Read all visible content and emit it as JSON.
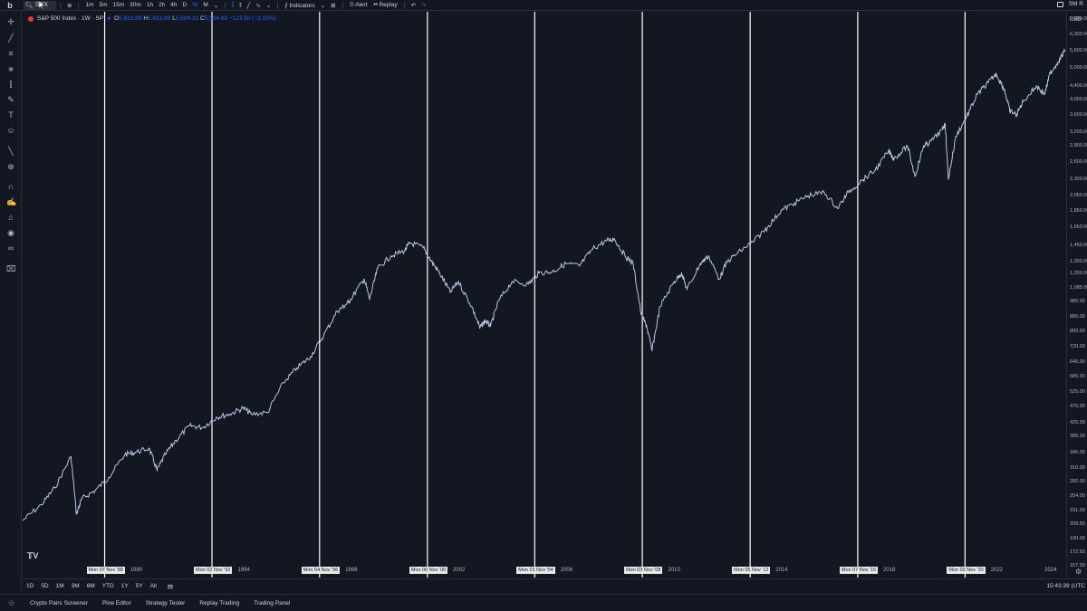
{
  "topbar": {
    "logo": "b",
    "search_value": "SPX",
    "timeframes": [
      "1m",
      "5m",
      "15m",
      "30m",
      "1h",
      "2h",
      "4h",
      "D",
      "W",
      "M"
    ],
    "active_timeframe": "W",
    "indicators_label": "Indicators",
    "alert_label": "Alert",
    "replay_label": "Replay",
    "right_label": "SM R"
  },
  "legend": {
    "symbol": "S&P 500 Index · 1W · SP",
    "open": "5,623.89",
    "high": "5,623.89",
    "low": "5,504.33",
    "close": "5,504.89",
    "change": "−123.50 (−2.19%)"
  },
  "yaxis": {
    "currency": "USD",
    "ticks": [
      "7,000.00",
      "6,300.00",
      "5,600.00",
      "5,000.00",
      "4,400.00",
      "4,000.00",
      "3,600.00",
      "3,200.00",
      "2,900.00",
      "2,600.00",
      "2,300.00",
      "2,050.00",
      "1,850.00",
      "1,650.00",
      "1,450.00",
      "1,300.00",
      "1,200.00",
      "1,085.00",
      "985.00",
      "885.00",
      "800.00",
      "720.00",
      "645.00",
      "585.00",
      "525.00",
      "475.00",
      "425.00",
      "385.00",
      "345.00",
      "310.00",
      "282.00",
      "254.00",
      "231.00",
      "209.50",
      "190.00",
      "172.50",
      "157.00"
    ]
  },
  "xaxis": {
    "years": [
      "1990",
      "1994",
      "1998",
      "2002",
      "2006",
      "2010",
      "2014",
      "2018",
      "2022",
      "2024"
    ],
    "vline_labels": [
      "Mon 07 Nov '88",
      "Mon 02 Nov '92",
      "Mon 04 Nov '96",
      "Mon 06 Nov '00",
      "Mon 01 Nov '04",
      "Mon 03 Nov '08",
      "Mon 05 Nov '12",
      "Mon 07 Nov '16",
      "Mon 02 Nov '20"
    ]
  },
  "bottombar": {
    "ranges": [
      "1D",
      "5D",
      "1M",
      "3M",
      "6M",
      "YTD",
      "1Y",
      "5Y",
      "All"
    ],
    "clock": "15:43:39 (UTC"
  },
  "panels": [
    "Crypto Pairs Screener",
    "Pine Editor",
    "Strategy Tester",
    "Replay Trading",
    "Trading Panel"
  ],
  "colors": {
    "background": "#131722",
    "line": "#b8c7e6",
    "vline": "#ffffff",
    "accent": "#2962ff"
  },
  "chart_data": {
    "type": "line",
    "title": "S&P 500 Index · 1W · SP",
    "xlabel": "",
    "ylabel": "",
    "yscale": "log",
    "ylim": [
      157,
      7000
    ],
    "xlim": [
      1985.8,
      2024.6
    ],
    "grid": false,
    "vertical_lines": [
      1988.85,
      1992.84,
      1996.84,
      2000.85,
      2004.84,
      2008.84,
      2012.85,
      2016.85,
      2020.84
    ],
    "series": [
      {
        "name": "",
        "x": [
          1985.8,
          1986.5,
          1987.0,
          1987.6,
          1987.8,
          1988.0,
          1988.5,
          1989.0,
          1989.6,
          1990.0,
          1990.5,
          1990.8,
          1991.1,
          1991.5,
          1992.0,
          1992.5,
          1993.0,
          1993.5,
          1994.0,
          1994.3,
          1994.9,
          1995.5,
          1996.0,
          1996.5,
          1997.0,
          1997.5,
          1997.8,
          1998.0,
          1998.5,
          1998.7,
          1999.0,
          1999.5,
          2000.0,
          2000.2,
          2000.7,
          2001.0,
          2001.3,
          2001.7,
          2002.0,
          2002.5,
          2002.8,
          2003.0,
          2003.2,
          2003.5,
          2004.0,
          2004.6,
          2005.0,
          2005.5,
          2006.0,
          2006.5,
          2007.0,
          2007.5,
          2007.8,
          2008.2,
          2008.5,
          2008.8,
          2009.0,
          2009.2,
          2009.5,
          2010.0,
          2010.3,
          2010.5,
          2011.0,
          2011.3,
          2011.7,
          2012.0,
          2012.5,
          2013.0,
          2013.5,
          2014.0,
          2014.5,
          2015.0,
          2015.6,
          2016.1,
          2016.5,
          2017.0,
          2017.5,
          2018.0,
          2018.2,
          2018.7,
          2018.98,
          2019.3,
          2019.5,
          2020.0,
          2020.1,
          2020.22,
          2020.5,
          2020.9,
          2021.3,
          2021.7,
          2022.0,
          2022.3,
          2022.5,
          2022.75,
          2023.0,
          2023.5,
          2023.8,
          2024.0,
          2024.3,
          2024.55
        ],
        "values": [
          215,
          240,
          270,
          335,
          225,
          250,
          265,
          290,
          340,
          345,
          355,
          305,
          340,
          375,
          415,
          410,
          440,
          450,
          470,
          450,
          455,
          560,
          620,
          670,
          780,
          920,
          960,
          1000,
          1150,
          1000,
          1240,
          1350,
          1400,
          1480,
          1430,
          1300,
          1200,
          1050,
          1130,
          950,
          820,
          860,
          830,
          990,
          1130,
          1110,
          1200,
          1210,
          1280,
          1260,
          1420,
          1500,
          1520,
          1350,
          1280,
          900,
          830,
          700,
          950,
          1120,
          1200,
          1070,
          1280,
          1350,
          1150,
          1300,
          1400,
          1500,
          1650,
          1850,
          1950,
          2050,
          2100,
          1880,
          2100,
          2280,
          2450,
          2800,
          2650,
          2900,
          2350,
          2900,
          2950,
          3250,
          3380,
          2300,
          3100,
          3550,
          4150,
          4500,
          4780,
          4300,
          3700,
          3600,
          3950,
          4400,
          4150,
          4800,
          5200,
          5600
        ]
      }
    ]
  }
}
